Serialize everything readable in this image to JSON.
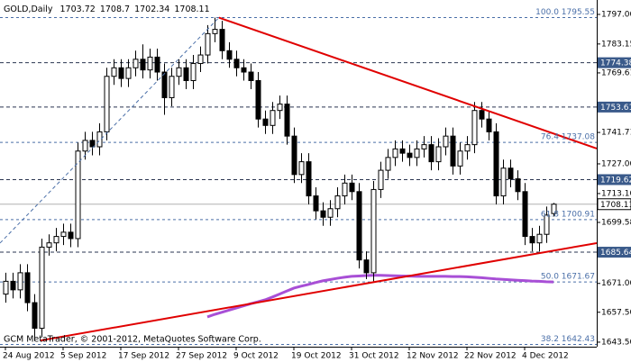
{
  "chart_data": {
    "type": "candlestick",
    "title": "GOLD,Daily",
    "footer": "GCM MetaTrader, © 2001-2012, MetaQuotes Software Corp.",
    "colors": {
      "up": "#ffffff",
      "down": "#000000",
      "wick": "#000000"
    },
    "open": [
      1666,
      1672,
      1668,
      1676,
      1662,
      1650,
      1688,
      1690,
      1693,
      1695,
      1692,
      1733,
      1738,
      1735,
      1742,
      1768,
      1772,
      1767,
      1772,
      1776,
      1771,
      1777,
      1770,
      1758,
      1768,
      1772,
      1766,
      1774,
      1778,
      1788,
      1790,
      1780,
      1776,
      1772,
      1770,
      1766,
      1748,
      1745,
      1752,
      1755,
      1740,
      1722,
      1728,
      1712,
      1705,
      1702,
      1706,
      1712,
      1718,
      1714,
      1682,
      1676,
      1715,
      1724,
      1730,
      1734,
      1732,
      1730,
      1734,
      1736,
      1728,
      1735,
      1740,
      1726,
      1733,
      1736,
      1752,
      1748,
      1742,
      1712,
      1725,
      1720,
      1714,
      1693,
      1690,
      1694,
      1703.72
    ],
    "high": [
      1676,
      1676,
      1680,
      1680,
      1666,
      1692,
      1694,
      1697,
      1699,
      1699,
      1737,
      1742,
      1742,
      1746,
      1772,
      1776,
      1776,
      1776,
      1780,
      1783,
      1781,
      1781,
      1774,
      1772,
      1776,
      1776,
      1778,
      1782,
      1792,
      1795.5,
      1794,
      1784,
      1780,
      1776,
      1774,
      1770,
      1752,
      1756,
      1759,
      1759,
      1744,
      1732,
      1732,
      1716,
      1709,
      1710,
      1716,
      1722,
      1722,
      1718,
      1686,
      1719,
      1728,
      1734,
      1738,
      1738,
      1736,
      1738,
      1740,
      1740,
      1739,
      1744,
      1744,
      1737,
      1740,
      1756,
      1756,
      1752,
      1746,
      1729,
      1729,
      1724,
      1718,
      1697,
      1698,
      1707,
      1708.7
    ],
    "low": [
      1662,
      1664,
      1664,
      1658,
      1644,
      1646,
      1684,
      1686,
      1689,
      1688,
      1688,
      1729,
      1731,
      1731,
      1738,
      1764,
      1763,
      1763,
      1768,
      1767,
      1767,
      1766,
      1750,
      1754,
      1764,
      1762,
      1762,
      1770,
      1774,
      1784,
      1776,
      1772,
      1768,
      1766,
      1762,
      1744,
      1741,
      1741,
      1748,
      1736,
      1718,
      1718,
      1708,
      1701,
      1698,
      1698,
      1702,
      1708,
      1710,
      1678,
      1673,
      1672,
      1711,
      1720,
      1726,
      1728,
      1726,
      1726,
      1730,
      1724,
      1724,
      1731,
      1722,
      1722,
      1729,
      1732,
      1744,
      1738,
      1708,
      1708,
      1716,
      1710,
      1689,
      1686,
      1686,
      1690,
      1702.34
    ],
    "close": [
      1672,
      1668,
      1676,
      1662,
      1650,
      1688,
      1690,
      1693,
      1695,
      1692,
      1733,
      1738,
      1735,
      1742,
      1768,
      1772,
      1767,
      1772,
      1776,
      1771,
      1777,
      1770,
      1758,
      1768,
      1772,
      1766,
      1774,
      1778,
      1788,
      1790,
      1780,
      1776,
      1772,
      1770,
      1766,
      1748,
      1745,
      1752,
      1755,
      1740,
      1722,
      1728,
      1712,
      1705,
      1702,
      1706,
      1712,
      1718,
      1714,
      1682,
      1676,
      1715,
      1724,
      1730,
      1734,
      1732,
      1730,
      1734,
      1736,
      1728,
      1735,
      1740,
      1726,
      1733,
      1736,
      1752,
      1748,
      1742,
      1712,
      1725,
      1720,
      1714,
      1693,
      1690,
      1694,
      1703,
      1708.11
    ],
    "moving_average": {
      "color": "#a84fd6",
      "values": [
        null,
        null,
        null,
        null,
        null,
        null,
        null,
        null,
        null,
        null,
        null,
        null,
        null,
        null,
        null,
        null,
        null,
        null,
        null,
        null,
        null,
        null,
        null,
        null,
        null,
        null,
        null,
        null,
        1655.3,
        1656.5,
        1657.5,
        1658.5,
        1659.5,
        1660.5,
        1661.5,
        1662.4,
        1663.3,
        1664.6,
        1666,
        1667.4,
        1668.8,
        1669.7,
        1670.5,
        1671.4,
        1672.2,
        1672.8,
        1673.4,
        1673.9,
        1674.3,
        1674.5,
        1674.7,
        1674.8,
        1674.8,
        1674.7,
        1674.6,
        1674.5,
        1674.4,
        1674.3,
        1674.3,
        1674.3,
        1674.3,
        1674.3,
        1674.2,
        1674.2,
        1674.1,
        1673.9,
        1673.7,
        1673.4,
        1673.1,
        1672.9,
        1672.7,
        1672.5,
        1672.3,
        1672.1,
        1672,
        1671.8,
        1671.7
      ]
    },
    "trendlines": [
      {
        "color": "#e00000",
        "dashed": false,
        "x": [
          29.6,
          82
        ],
        "y": [
          1795.5,
          1734.2
        ]
      },
      {
        "color": "#e00000",
        "dashed": false,
        "x": [
          4.9,
          82
        ],
        "y": [
          1644.3,
          1689.9
        ]
      },
      {
        "color": "#4a6fa8",
        "dashed": true,
        "x": [
          -0.75,
          29.6
        ],
        "y": [
          1689.9,
          1795.5
        ]
      }
    ],
    "fib_levels": [
      {
        "value": 1795.55,
        "label": "100.0 1795.55"
      },
      {
        "value": 1737.08,
        "label": "76.4 1737.08"
      },
      {
        "value": 1700.91,
        "label": "61.8 1700.91"
      },
      {
        "value": 1671.67,
        "label": "50.0 1671.67"
      },
      {
        "value": 1642.43,
        "label": "38.2 1642.43"
      }
    ],
    "price_levels": [
      1774.38,
      1753.61,
      1719.62,
      1685.64
    ],
    "xlim": [
      -0.75,
      82
    ],
    "xticks": [
      {
        "value": 0,
        "label": "24 Aug 2012"
      },
      {
        "value": 8,
        "label": "5 Sep 2012"
      },
      {
        "value": 16,
        "label": "17 Sep 2012"
      },
      {
        "value": 24,
        "label": "27 Sep 2012"
      },
      {
        "value": 32,
        "label": "9 Oct 2012"
      },
      {
        "value": 40,
        "label": "19 Oct 2012"
      },
      {
        "value": 48,
        "label": "31 Oct 2012"
      },
      {
        "value": 56,
        "label": "12 Nov 2012"
      },
      {
        "value": 64,
        "label": "22 Nov 2012"
      },
      {
        "value": 72,
        "label": "4 Dec 2012"
      }
    ],
    "ylim": [
      1641.37,
      1803.75
    ],
    "yticks": [
      {
        "value": 1797,
        "label": "1797.00"
      },
      {
        "value": 1783.15,
        "label": "1783.15"
      },
      {
        "value": 1769.61,
        "label": "1769.61"
      },
      {
        "value": 1741.71,
        "label": "1741.71"
      },
      {
        "value": 1727,
        "label": "1727.00"
      },
      {
        "value": 1713.1,
        "label": "1713.10"
      },
      {
        "value": 1699.58,
        "label": "1699.58"
      },
      {
        "value": 1671,
        "label": "1671.00"
      },
      {
        "value": 1657.5,
        "label": "1657.50"
      },
      {
        "value": 1643.5,
        "label": "1643.50"
      }
    ]
  }
}
